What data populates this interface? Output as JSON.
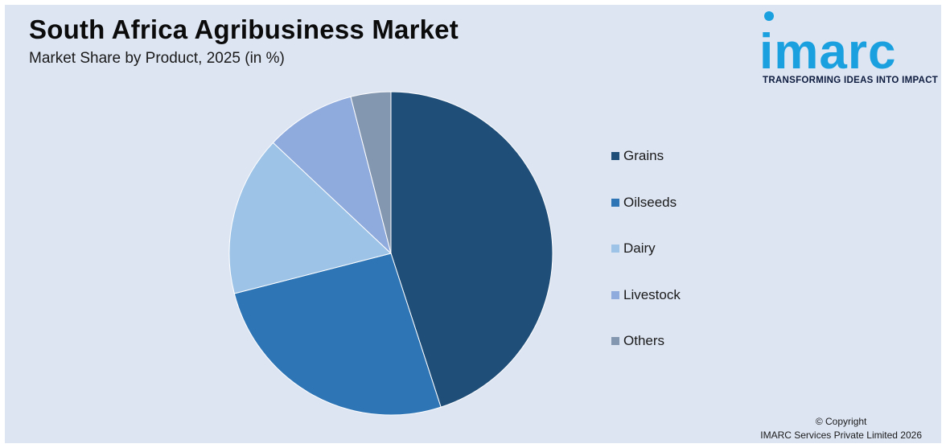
{
  "header": {
    "title": "South Africa Agribusiness Market",
    "subtitle": "Market Share by Product, 2025 (in %)"
  },
  "logo": {
    "name": "imarc",
    "tagline": "TRANSFORMING IDEAS INTO IMPACT",
    "color": "#1aa0df"
  },
  "chart_data": {
    "type": "pie",
    "title": "South Africa Agribusiness Market",
    "subtitle": "Market Share by Product, 2025 (in %)",
    "legend_position": "right",
    "start_angle": "12 o'clock",
    "direction": "clockwise",
    "categories": [
      "Grains",
      "Oilseeds",
      "Dairy",
      "Livestock",
      "Others"
    ],
    "values": [
      45,
      26,
      16,
      9,
      4
    ],
    "colors": [
      "#1f4e79",
      "#2e75b6",
      "#9dc3e6",
      "#8faadc",
      "#8497b0"
    ]
  },
  "footer": {
    "copyright_line1": "© Copyright",
    "copyright_line2": "IMARC Services Private Limited 2026"
  }
}
